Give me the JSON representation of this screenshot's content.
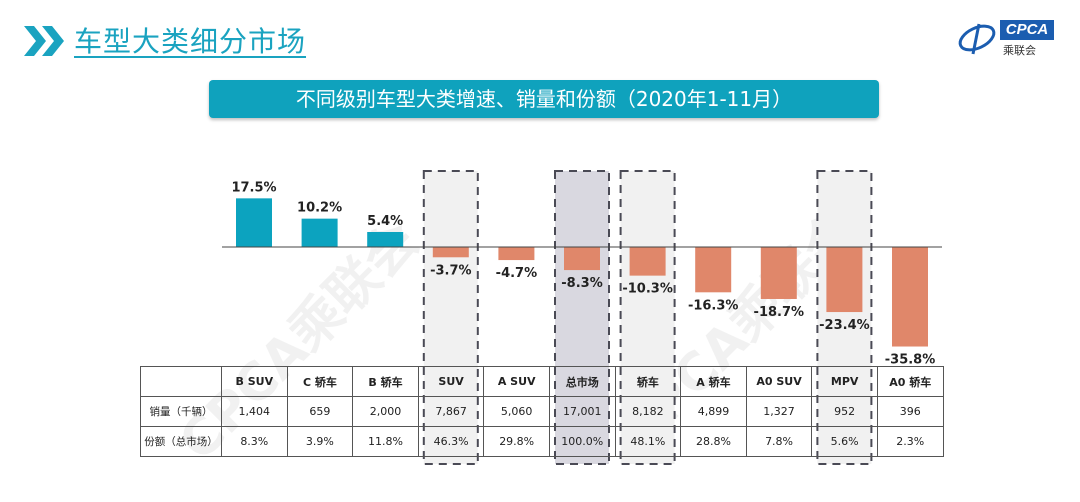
{
  "header": {
    "title": "车型大类细分市场",
    "logo_text": "CPCA",
    "logo_cn": "乘联会",
    "watermark": "CPCA乘联会"
  },
  "chart_data": {
    "type": "bar",
    "title": "不同级别车型大类增速、销量和份额（2020年1-11月）",
    "categories": [
      "B SUV",
      "C 轿车",
      "B 轿车",
      "SUV",
      "A SUV",
      "总市场",
      "轿车",
      "A 轿车",
      "A0 SUV",
      "MPV",
      "A0 轿车"
    ],
    "values": [
      17.5,
      10.2,
      5.4,
      -3.7,
      -4.7,
      -8.3,
      -10.3,
      -16.3,
      -18.7,
      -23.4,
      -35.8
    ],
    "value_labels": [
      "17.5%",
      "10.2%",
      "5.4%",
      "-3.7%",
      "-4.7%",
      "-8.3%",
      "-10.3%",
      "-16.3%",
      "-18.7%",
      "-23.4%",
      "-35.8%"
    ],
    "unit": "%",
    "highlighted": [
      "SUV",
      "总市场",
      "轿车",
      "MPV"
    ],
    "colors": {
      "positive": "#0ca3bf",
      "negative": "#e0876a",
      "highlight_fill": "#f1f1f1",
      "total_fill": "#d9d8e0"
    },
    "table": {
      "rows": [
        {
          "label": "销量（千辆）",
          "values": [
            "1,404",
            "659",
            "2,000",
            "7,867",
            "5,060",
            "17,001",
            "8,182",
            "4,899",
            "1,327",
            "952",
            "396"
          ]
        },
        {
          "label": "份额（总市场）",
          "values": [
            "8.3%",
            "3.9%",
            "11.8%",
            "46.3%",
            "29.8%",
            "100.0%",
            "48.1%",
            "28.8%",
            "7.8%",
            "5.6%",
            "2.3%"
          ]
        }
      ]
    }
  }
}
